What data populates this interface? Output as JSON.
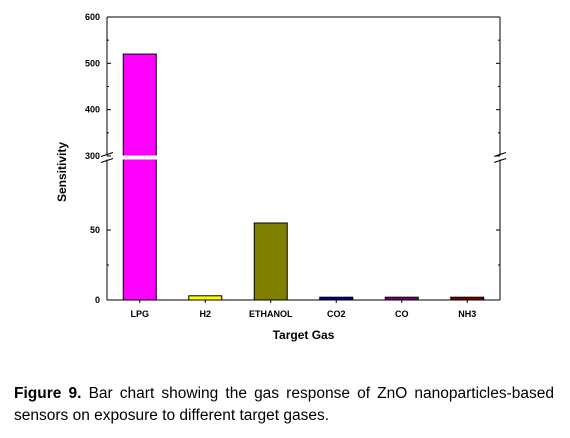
{
  "chart_data": {
    "type": "bar",
    "categories": [
      "LPG",
      "H2",
      "ETHANOL",
      "CO2",
      "CO",
      "NH3"
    ],
    "values": [
      520,
      3,
      55,
      2,
      2,
      2
    ],
    "colors": [
      "#ff00ff",
      "#ffff00",
      "#808000",
      "#000080",
      "#800080",
      "#800000"
    ],
    "xlabel": "Target Gas",
    "ylabel": "Sensitivity",
    "axis_break": {
      "lower_range": [
        0,
        60
      ],
      "upper_range": [
        300,
        600
      ]
    },
    "y_ticks": [
      "0",
      "50",
      "300",
      "400",
      "500",
      "600"
    ],
    "grid": false
  },
  "caption": {
    "label": "Figure 9.",
    "text": "Bar chart showing the gas response of ZnO nanoparticles-based sensors on exposure to different target gases."
  }
}
